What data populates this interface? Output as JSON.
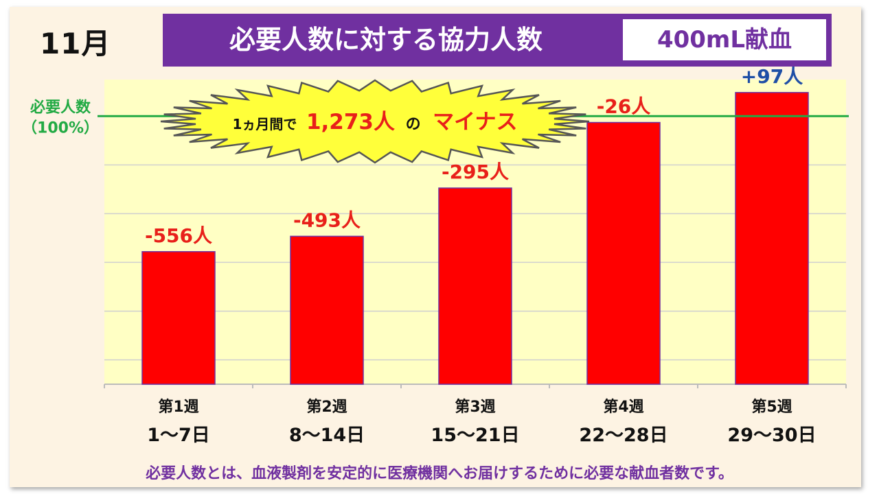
{
  "header": {
    "month": "11月",
    "title": "必要人数に対する協力人数",
    "donation_type": "400mL献血"
  },
  "burst": {
    "prefix": "1ヵ月間で",
    "total": "1,273人",
    "particle": "の",
    "suffix": "マイナス"
  },
  "reference": {
    "label_line1": "必要人数",
    "label_line2": "（100%）",
    "color": "#22aa44"
  },
  "footnote": "必要人数とは、血液製剤を安定的に医療機関へお届けするために必要な献血者数です。",
  "colors": {
    "bar": "#ff0000",
    "bar_border": "#7030a0",
    "negative_label": "#e8201a",
    "positive_label": "#1f4ea6",
    "title_bg": "#7030a0",
    "plot_bg": "#ffffc4",
    "burst_fill": "#ffff3a"
  },
  "chart_data": {
    "type": "bar",
    "categories": [
      "第1週",
      "第2週",
      "第3週",
      "第4週",
      "第5週"
    ],
    "date_ranges": [
      "1～7日",
      "8～14日",
      "15～21日",
      "22～28日",
      "29～30日"
    ],
    "values": [
      -556,
      -493,
      -295,
      -26,
      97
    ],
    "value_labels": [
      "-556人",
      "-493人",
      "-295人",
      "-26人",
      "+97人"
    ],
    "reference_value": 0,
    "ylim": [
      -1100,
      150
    ],
    "grid": true,
    "title": "",
    "xlabel": "",
    "ylabel": ""
  }
}
